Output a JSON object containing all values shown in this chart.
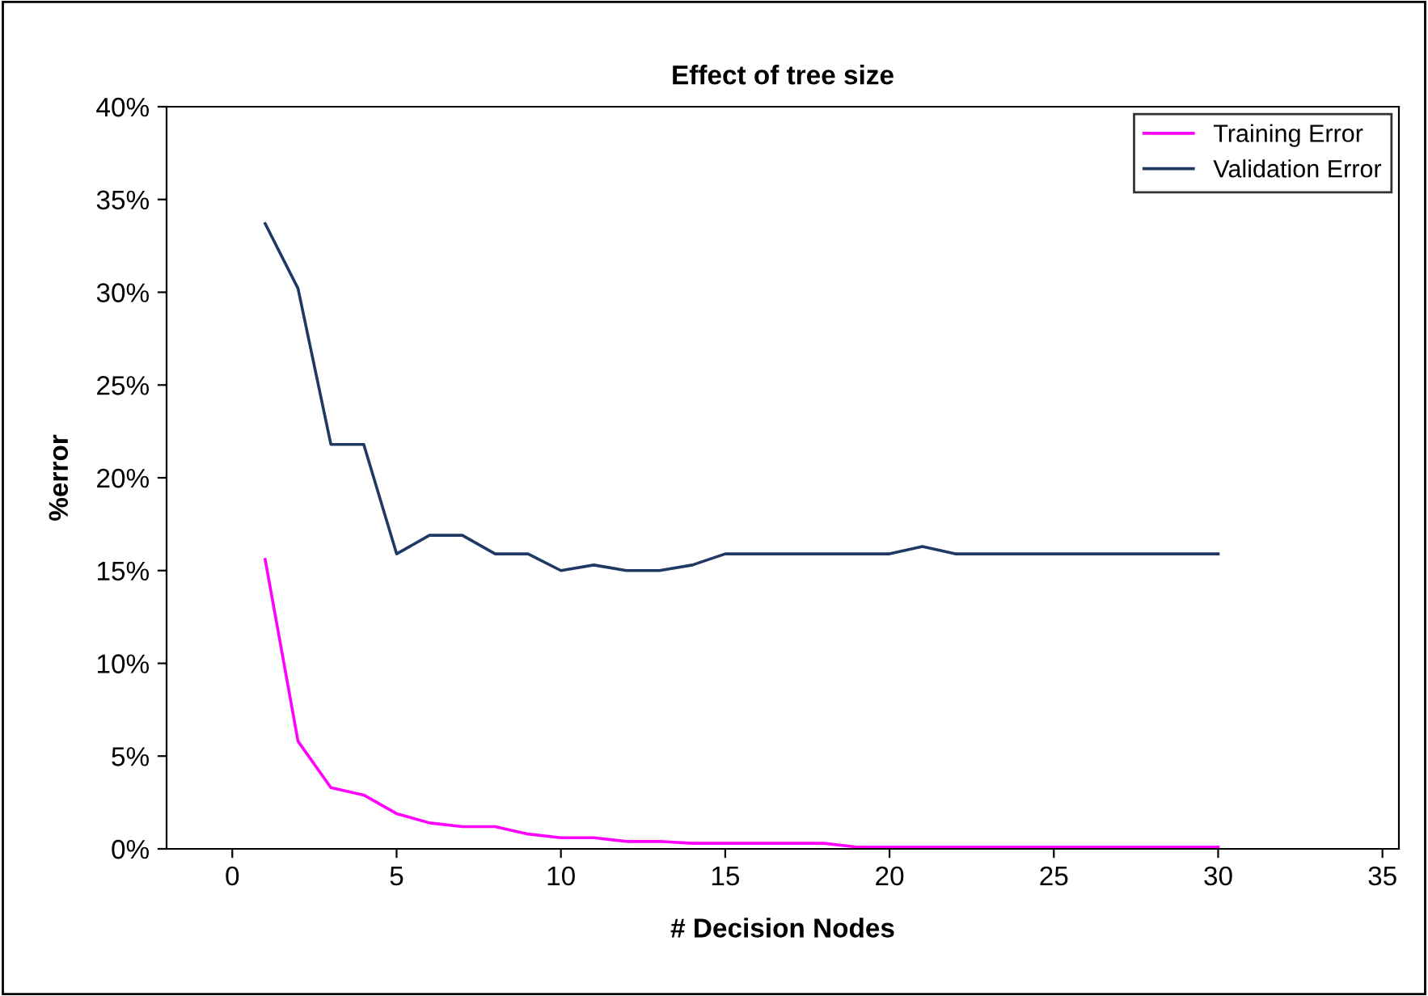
{
  "chart_data": {
    "type": "line",
    "title": "Effect of tree size",
    "xlabel": "# Decision Nodes",
    "ylabel": "%error",
    "x": [
      1,
      2,
      3,
      4,
      5,
      6,
      7,
      8,
      9,
      10,
      11,
      12,
      13,
      14,
      15,
      16,
      17,
      18,
      19,
      20,
      21,
      22,
      23,
      24,
      25,
      26,
      27,
      28,
      29,
      30
    ],
    "series": [
      {
        "name": "Training Error",
        "color": "#ff00ff",
        "values": [
          15.6,
          5.8,
          3.3,
          2.9,
          1.9,
          1.4,
          1.2,
          1.2,
          0.8,
          0.6,
          0.6,
          0.4,
          0.4,
          0.3,
          0.3,
          0.3,
          0.3,
          0.3,
          0.1,
          0.1,
          0.1,
          0.1,
          0.1,
          0.1,
          0.1,
          0.1,
          0.1,
          0.1,
          0.1,
          0.1
        ]
      },
      {
        "name": "Validation Error",
        "color": "#1f3864",
        "values": [
          33.7,
          30.2,
          21.8,
          21.8,
          15.9,
          16.9,
          16.9,
          15.9,
          15.9,
          15.0,
          15.3,
          15.0,
          15.0,
          15.3,
          15.9,
          15.9,
          15.9,
          15.9,
          15.9,
          15.9,
          16.3,
          15.9,
          15.9,
          15.9,
          15.9,
          15.9,
          15.9,
          15.9,
          15.9,
          15.9
        ]
      }
    ],
    "xlim": [
      -2,
      35.5
    ],
    "xticks": [
      0,
      5,
      10,
      15,
      20,
      25,
      30,
      35
    ],
    "ylim": [
      0,
      40
    ],
    "yticks": [
      {
        "value": 0,
        "label": "0%"
      },
      {
        "value": 5,
        "label": "5%"
      },
      {
        "value": 10,
        "label": "10%"
      },
      {
        "value": 15,
        "label": "15%"
      },
      {
        "value": 20,
        "label": "20%"
      },
      {
        "value": 25,
        "label": "25%"
      },
      {
        "value": 30,
        "label": "30%"
      },
      {
        "value": 35,
        "label": "35%"
      },
      {
        "value": 40,
        "label": "40%"
      }
    ],
    "grid": false,
    "legend": "top right",
    "marker": "none",
    "line_style": "solid"
  }
}
